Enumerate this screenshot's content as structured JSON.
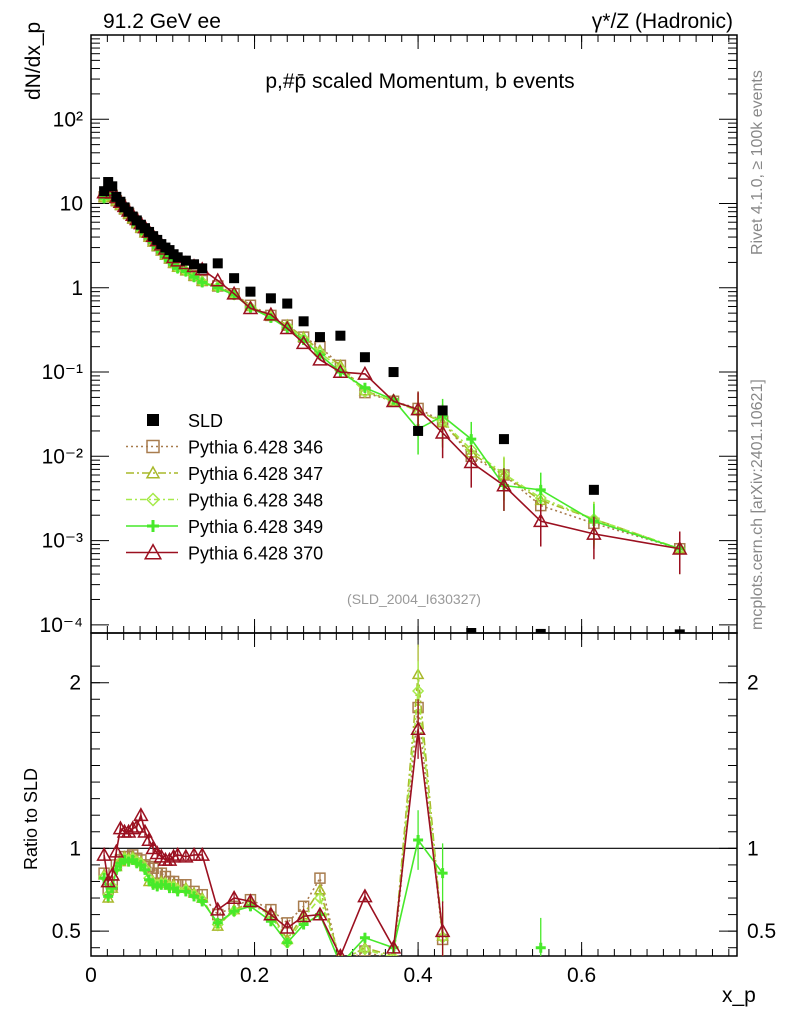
{
  "header": {
    "left": "91.2 GeV ee",
    "right": "γ*/Z (Hadronic)"
  },
  "side_labels": {
    "rivet": "Rivet 4.1.0, ≥ 100k events",
    "mcplots": "mcplots.cern.ch [arXiv:2401.10621]"
  },
  "chart_data": {
    "type": "line",
    "title": "p,#p̄ scaled Momentum, b events",
    "analysis_tag": "(SLD_2004_I630327)",
    "xlabel": "x_p",
    "ylabel": "dN/dx_p",
    "ratio_ylabel": "Ratio to SLD",
    "xlim": [
      0,
      0.79
    ],
    "ylim_log": [
      8e-05,
      1000
    ],
    "ratio_ylim": [
      0.35,
      2.3
    ],
    "x_ticks": [
      "0",
      "0.2",
      "0.4",
      "0.6"
    ],
    "x_tick_values": [
      0,
      0.2,
      0.4,
      0.6
    ],
    "y_ticks": [
      "10⁻⁴",
      "10⁻³",
      "10⁻²",
      "10⁻¹",
      "1",
      "10",
      "10²"
    ],
    "y_tick_values": [
      0.0001,
      0.001,
      0.01,
      0.1,
      1,
      10,
      100
    ],
    "ratio_ticks": [
      "0.5",
      "1",
      "2"
    ],
    "ratio_tick_values": [
      0.5,
      1,
      2
    ],
    "x": [
      0.016,
      0.021,
      0.026,
      0.031,
      0.036,
      0.041,
      0.046,
      0.051,
      0.056,
      0.061,
      0.066,
      0.071,
      0.076,
      0.081,
      0.086,
      0.091,
      0.096,
      0.101,
      0.106,
      0.116,
      0.126,
      0.136,
      0.155,
      0.175,
      0.195,
      0.22,
      0.24,
      0.26,
      0.28,
      0.305,
      0.335,
      0.37,
      0.4,
      0.43,
      0.465,
      0.505,
      0.55,
      0.615,
      0.72
    ],
    "data": {
      "name": "SLD",
      "values": [
        14,
        18,
        16,
        12,
        10.5,
        9,
        8,
        7,
        6.3,
        5.6,
        5.1,
        4.6,
        4.1,
        3.7,
        3.3,
        3.0,
        2.8,
        2.5,
        2.3,
        2.1,
        1.9,
        1.7,
        1.95,
        1.3,
        0.9,
        0.75,
        0.65,
        0.4,
        0.26,
        0.27,
        0.15,
        0.1,
        0.02,
        0.035,
        8e-05,
        0.016,
        7.8e-05,
        0.004,
        7.7e-05
      ]
    },
    "series": [
      {
        "name": "Pythia 6.428 346",
        "color": "#a87c4e",
        "dash": "2,3",
        "marker": "square",
        "values": [
          12.0,
          13.5,
          12.5,
          10.8,
          9.7,
          8.6,
          7.6,
          6.7,
          5.9,
          5.2,
          4.6,
          4.1,
          3.6,
          3.15,
          2.8,
          2.5,
          2.25,
          2.0,
          1.8,
          1.63,
          1.4,
          1.22,
          1.05,
          0.85,
          0.62,
          0.47,
          0.36,
          0.26,
          0.2,
          0.12,
          0.057,
          0.045,
          0.037,
          0.026,
          0.01,
          0.006,
          0.0026,
          0.0016,
          0.0008
        ],
        "ratio": [
          0.85,
          0.75,
          0.78,
          0.9,
          0.93,
          0.95,
          0.95,
          0.96,
          0.94,
          0.93,
          0.9,
          0.89,
          0.88,
          0.85,
          0.85,
          0.83,
          0.8,
          0.8,
          0.78,
          0.78,
          0.74,
          0.72,
          0.6,
          0.65,
          0.69,
          0.63,
          0.55,
          0.65,
          0.82,
          0.3,
          0.38,
          0.32,
          1.85,
          0.45,
          null,
          null,
          null,
          null,
          null
        ]
      },
      {
        "name": "Pythia 6.428 347",
        "color": "#a8b82a",
        "dash": "8,3,2,3",
        "marker": "triangle",
        "values": [
          11.8,
          13.0,
          12.3,
          10.7,
          9.5,
          8.5,
          7.5,
          6.6,
          5.8,
          5.1,
          4.5,
          4.0,
          3.5,
          3.1,
          2.75,
          2.45,
          2.2,
          1.95,
          1.75,
          1.6,
          1.38,
          1.2,
          1.04,
          0.84,
          0.6,
          0.46,
          0.36,
          0.26,
          0.18,
          0.12,
          0.06,
          0.045,
          0.035,
          0.025,
          0.011,
          0.006,
          0.003,
          0.0018,
          0.0008
        ],
        "ratio": [
          0.84,
          0.7,
          0.76,
          0.89,
          0.92,
          0.95,
          0.94,
          0.95,
          0.93,
          0.92,
          0.89,
          0.8,
          0.8,
          0.79,
          0.8,
          0.79,
          0.78,
          0.78,
          0.76,
          0.76,
          0.73,
          0.7,
          0.53,
          0.63,
          0.67,
          0.61,
          0.45,
          0.6,
          0.75,
          0.32,
          0.4,
          0.35,
          2.05,
          0.47,
          null,
          null,
          null,
          null,
          null
        ]
      },
      {
        "name": "Pythia 6.428 348",
        "color": "#a6ea4a",
        "dash": "6,3,2,3",
        "marker": "diamond",
        "values": [
          11.7,
          12.9,
          12.2,
          10.6,
          9.4,
          8.4,
          7.4,
          6.5,
          5.7,
          5.0,
          4.45,
          3.95,
          3.5,
          3.05,
          2.7,
          2.4,
          2.15,
          1.9,
          1.72,
          1.58,
          1.36,
          1.18,
          1.02,
          0.83,
          0.59,
          0.45,
          0.35,
          0.25,
          0.17,
          0.11,
          0.058,
          0.046,
          0.034,
          0.026,
          0.012,
          0.0062,
          0.0032,
          0.0018,
          0.0008
        ],
        "ratio": [
          0.83,
          0.72,
          0.77,
          0.88,
          0.92,
          0.94,
          0.93,
          0.94,
          0.92,
          0.91,
          0.88,
          0.82,
          0.79,
          0.78,
          0.79,
          0.79,
          0.77,
          0.77,
          0.75,
          0.75,
          0.72,
          0.69,
          0.54,
          0.62,
          0.66,
          0.6,
          0.43,
          0.58,
          0.7,
          0.33,
          0.39,
          0.34,
          1.95,
          0.46,
          null,
          null,
          null,
          null,
          null
        ]
      },
      {
        "name": "Pythia 6.428 349",
        "color": "#47e92a",
        "dash": "",
        "marker": "cross",
        "values": [
          11.6,
          12.8,
          12.1,
          10.5,
          9.3,
          8.3,
          7.3,
          6.4,
          5.6,
          4.95,
          4.4,
          3.9,
          3.45,
          3.0,
          2.65,
          2.35,
          2.1,
          1.88,
          1.7,
          1.56,
          1.34,
          1.16,
          1.0,
          0.82,
          0.58,
          0.44,
          0.33,
          0.24,
          0.16,
          0.1,
          0.065,
          0.047,
          0.021,
          0.03,
          0.016,
          0.0045,
          0.004,
          0.0017,
          0.0008
        ],
        "ratio": [
          0.82,
          0.71,
          0.76,
          0.87,
          0.91,
          0.93,
          0.92,
          0.93,
          0.91,
          0.9,
          0.87,
          0.81,
          0.78,
          0.77,
          0.78,
          0.78,
          0.76,
          0.76,
          0.74,
          0.74,
          0.71,
          0.68,
          0.55,
          0.62,
          0.65,
          0.56,
          0.43,
          0.54,
          0.6,
          0.3,
          0.46,
          0.4,
          1.05,
          0.85,
          null,
          null,
          0.4,
          null,
          null
        ]
      },
      {
        "name": "Pythia 6.428 370",
        "color": "#9b1020",
        "dash": "",
        "marker": "triangle-open",
        "values": [
          13.5,
          14.5,
          13.4,
          11.8,
          10.4,
          9.3,
          8.2,
          7.3,
          6.5,
          5.8,
          5.2,
          4.6,
          4.1,
          3.65,
          3.25,
          2.9,
          2.6,
          2.3,
          2.1,
          1.95,
          1.8,
          1.65,
          1.22,
          0.85,
          0.57,
          0.48,
          0.33,
          0.22,
          0.14,
          0.1,
          0.095,
          0.045,
          0.036,
          0.019,
          0.0085,
          0.0045,
          0.0017,
          0.0012,
          0.0008
        ],
        "ratio": [
          0.96,
          0.8,
          0.84,
          0.98,
          1.12,
          1.1,
          1.1,
          1.12,
          1.13,
          1.2,
          1.1,
          1.05,
          1.0,
          0.97,
          0.95,
          0.93,
          0.93,
          0.95,
          0.96,
          0.95,
          0.96,
          0.96,
          0.63,
          0.7,
          0.68,
          0.6,
          0.52,
          0.59,
          0.6,
          0.35,
          0.71,
          0.4,
          1.72,
          0.5,
          null,
          null,
          null,
          null,
          null
        ]
      }
    ]
  }
}
